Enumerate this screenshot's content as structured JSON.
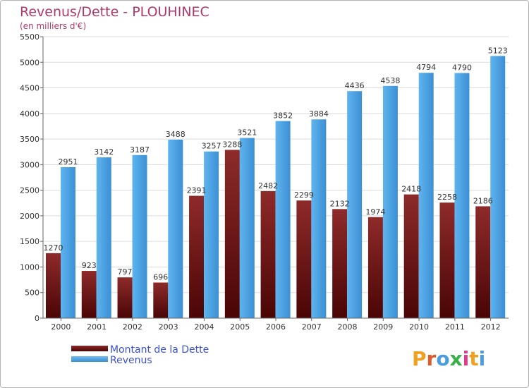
{
  "chart_data": {
    "type": "bar",
    "title": "Revenus/Dette - PLOUHINEC",
    "subtitle": "(en milliers d'€)",
    "categories": [
      "2000",
      "2001",
      "2002",
      "2003",
      "2004",
      "2005",
      "2006",
      "2007",
      "2008",
      "2009",
      "2010",
      "2011",
      "2012"
    ],
    "series": [
      {
        "name": "Montant de la Dette",
        "color": "#8a1c1c",
        "values": [
          1270,
          923,
          797,
          696,
          2391,
          3288,
          2482,
          2299,
          2132,
          1974,
          2418,
          2258,
          2186
        ]
      },
      {
        "name": "Revenus",
        "color": "#4ca3e4",
        "values": [
          2951,
          3142,
          3187,
          3488,
          3257,
          3521,
          3852,
          3884,
          4436,
          4538,
          4794,
          4790,
          5123
        ]
      }
    ],
    "ylim": [
      0,
      5500
    ],
    "yticks": [
      0,
      500,
      1000,
      1500,
      2000,
      2500,
      3000,
      3500,
      4000,
      4500,
      5000,
      5500
    ],
    "grid": true,
    "legend": "bottom-left"
  },
  "brand": {
    "logo": "Proxiti"
  }
}
